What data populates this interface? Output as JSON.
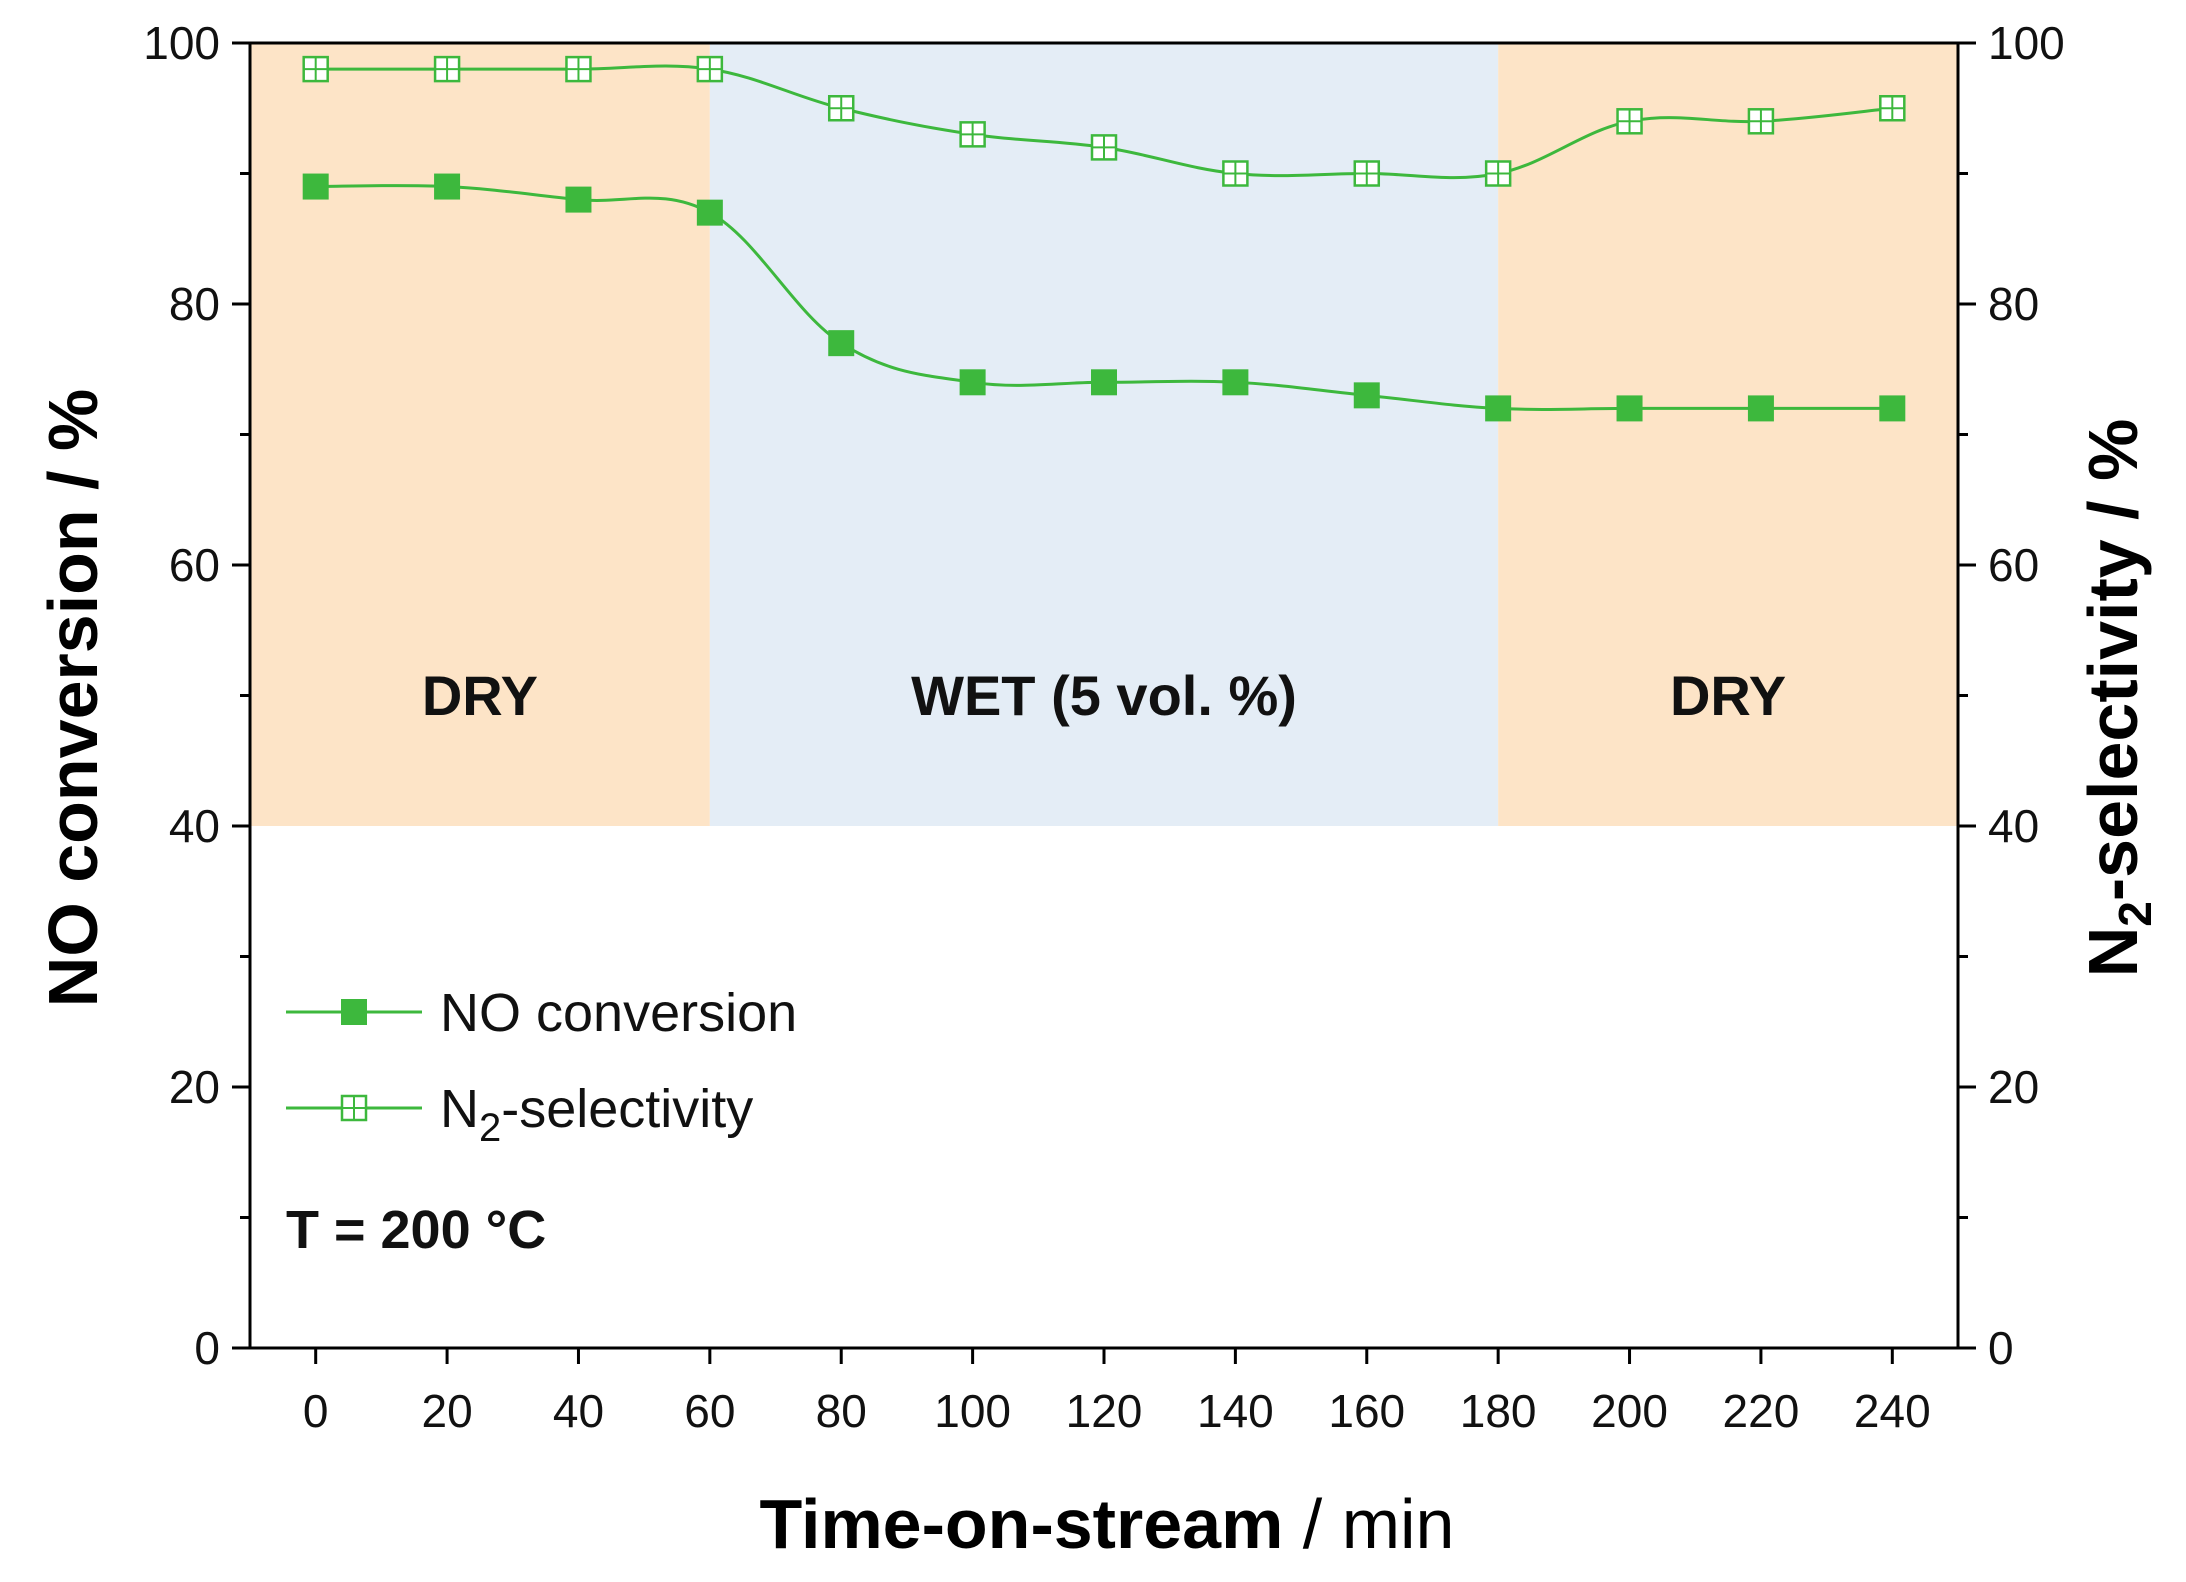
{
  "chart_data": {
    "type": "line",
    "x": [
      0,
      20,
      40,
      60,
      80,
      100,
      120,
      140,
      160,
      180,
      200,
      220,
      240
    ],
    "xlim": [
      -10,
      250
    ],
    "ylim_left": [
      0,
      100
    ],
    "ylim_right": [
      0,
      100
    ],
    "x_ticks": [
      0,
      20,
      40,
      60,
      80,
      100,
      120,
      140,
      160,
      180,
      200,
      220,
      240
    ],
    "x_tick_labels": [
      "0",
      "20",
      "40",
      "60",
      "80",
      "100",
      "120",
      "140",
      "160",
      "180",
      "200",
      "220",
      "240"
    ],
    "y_ticks": [
      0,
      20,
      40,
      60,
      80,
      100
    ],
    "y_tick_labels": [
      "0",
      "20",
      "40",
      "60",
      "80",
      "100"
    ],
    "xlabel": {
      "main": "Time-on-stream",
      "unit": " / min"
    },
    "ylabel_left": "NO conversion / %",
    "ylabel_right": {
      "prefix": "N",
      "sub": "2",
      "suffix": "-selectivity / %"
    },
    "series": [
      {
        "name": "NO conversion",
        "marker": "filled-square",
        "color": "#3db83d",
        "values": [
          89,
          89,
          88,
          87,
          77,
          74,
          74,
          74,
          73,
          72,
          72,
          72,
          72
        ]
      },
      {
        "name": "N2-selectivity",
        "label_prefix": "N",
        "label_sub": "2",
        "label_suffix": "-selectivity",
        "marker": "open-square-cross",
        "color": "#3db83d",
        "values": [
          98,
          98,
          98,
          98,
          95,
          93,
          92,
          90,
          90,
          90,
          94,
          94,
          95
        ]
      }
    ],
    "regions": [
      {
        "label": "DRY",
        "x_start": -10,
        "x_end": 60,
        "y_start": 40,
        "y_end": 100,
        "color": "#fde4c7"
      },
      {
        "label": "WET (5 vol. %)",
        "x_start": 60,
        "x_end": 180,
        "y_start": 40,
        "y_end": 100,
        "color": "#e4edf6"
      },
      {
        "label": "DRY",
        "x_start": 180,
        "x_end": 250,
        "y_start": 40,
        "y_end": 100,
        "color": "#fde4c7"
      }
    ],
    "annotation": "T = 200 °C",
    "legend_position": "lower-left"
  }
}
